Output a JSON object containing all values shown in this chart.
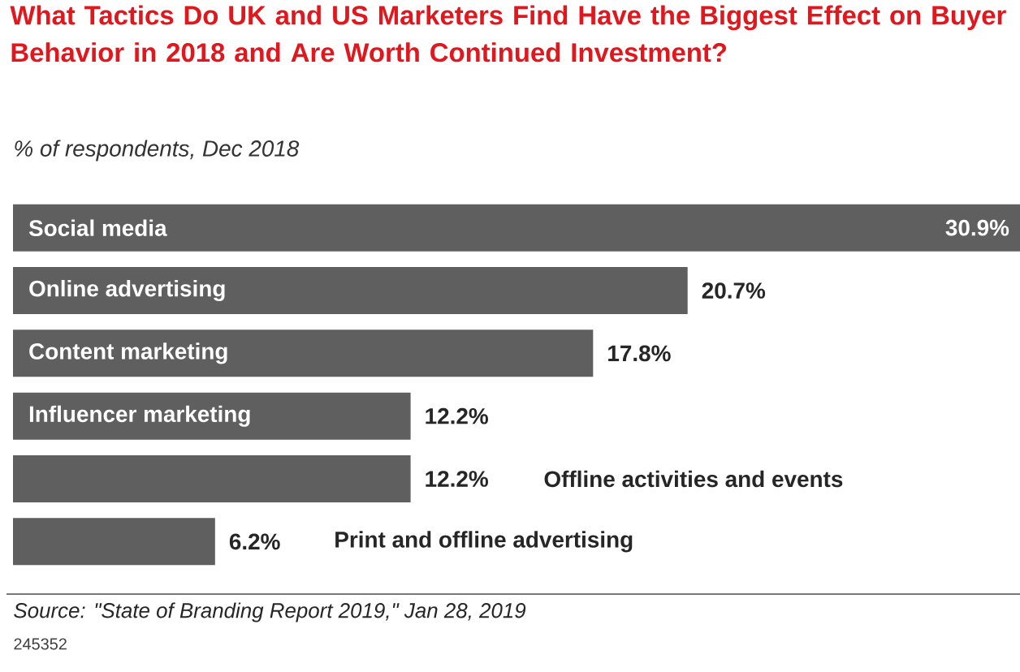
{
  "chart_data": {
    "type": "bar",
    "orientation": "horizontal",
    "title": "What Tactics Do UK and US Marketers Find Have the Biggest Effect on Buyer Behavior in 2018 and Are Worth Continued Investment?",
    "subtitle": "% of respondents, Dec 2018",
    "categories": [
      "Social media",
      "Online advertising",
      "Content marketing",
      "Influencer marketing",
      "Offline activities and events",
      "Print and offline advertising"
    ],
    "values": [
      30.9,
      20.7,
      17.8,
      12.2,
      12.2,
      6.2
    ],
    "value_labels": [
      "30.9%",
      "20.7%",
      "17.8%",
      "12.2%",
      "12.2%",
      "6.2%"
    ],
    "color": "#5f5f5f",
    "annotations": [
      "Source: \"State of Branding Report 2019,\" Jan 28, 2019",
      "245352"
    ]
  }
}
